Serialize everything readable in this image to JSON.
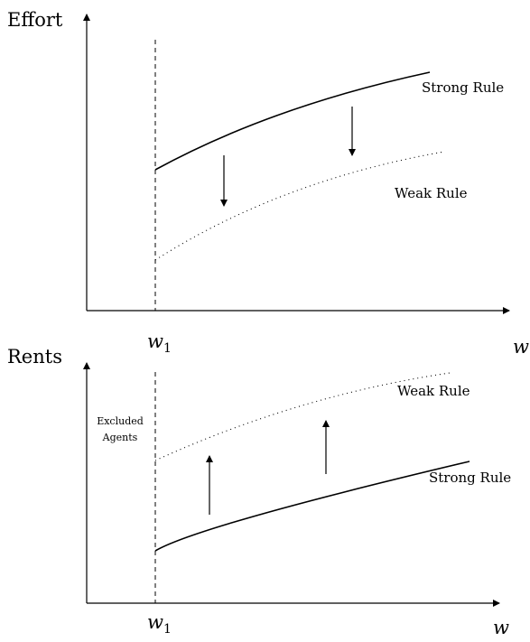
{
  "top_panel": {
    "ylabel": "Effort",
    "xlabel": "w",
    "threshold_label": "w",
    "threshold_subscript": "1",
    "strong_label": "Strong Rule",
    "weak_label": "Weak Rule",
    "arrow_direction": "down"
  },
  "bottom_panel": {
    "ylabel": "Rents",
    "xlabel": "w",
    "threshold_label": "w",
    "threshold_subscript": "1",
    "strong_label": "Strong Rule",
    "weak_label": "Weak Rule",
    "excluded_label_line1": "Excluded",
    "excluded_label_line2": "Agents",
    "arrow_direction": "up"
  },
  "colors": {
    "ink": "#000000",
    "background": "#ffffff"
  }
}
